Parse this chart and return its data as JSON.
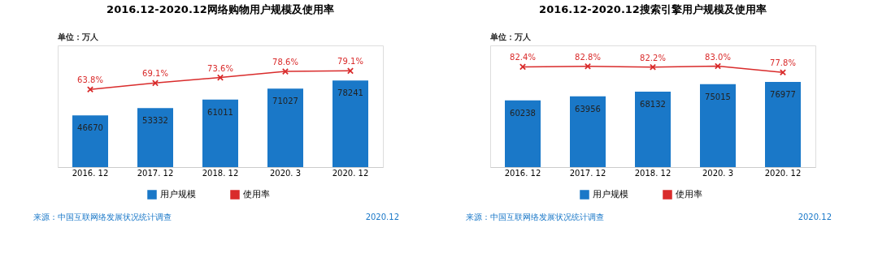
{
  "chart_data": [
    {
      "type": "bar",
      "title": "2016.12-2020.12网络购物用户规模及使用率",
      "categories": [
        "2016. 12",
        "2017. 12",
        "2018. 12",
        "2020. 3",
        "2020. 12"
      ],
      "series": [
        {
          "name": "用户规模",
          "color": "#1a78c8",
          "values": [
            46670,
            53332,
            61011,
            71027,
            78241
          ],
          "value_labels": [
            "46670",
            "53332",
            "61011",
            "71027",
            "78241"
          ]
        },
        {
          "name": "使用率",
          "type": "line",
          "axis": "y2",
          "color": "#d92b2b",
          "values": [
            63.8,
            69.1,
            73.6,
            78.6,
            79.1
          ],
          "value_labels": [
            "63.8%",
            "69.1%",
            "73.6%",
            "78.6%",
            "79.1%"
          ]
        }
      ],
      "annotations": [
        "单位：万人",
        "来源：中国互联网络发展状况统计调查",
        "2020.12"
      ],
      "legend": "bottom",
      "marker": "cross",
      "grid": false,
      "tick_labels": "x",
      "ylim": [
        0,
        110000
      ],
      "y2lim": [
        0,
        100
      ]
    },
    {
      "type": "bar",
      "title": "2016.12-2020.12搜索引擎用户规模及使用率",
      "categories": [
        "2016. 12",
        "2017. 12",
        "2018. 12",
        "2020. 3",
        "2020. 12"
      ],
      "series": [
        {
          "name": "用户规模",
          "color": "#1a78c8",
          "values": [
            60238,
            63956,
            68132,
            75015,
            76977
          ],
          "value_labels": [
            "60238",
            "63956",
            "68132",
            "75015",
            "76977"
          ]
        },
        {
          "name": "使用率",
          "type": "line",
          "axis": "y2",
          "color": "#d92b2b",
          "values": [
            82.4,
            82.8,
            82.2,
            83.0,
            77.8
          ],
          "value_labels": [
            "82.4%",
            "82.8%",
            "82.2%",
            "83.0%",
            "77.8%"
          ]
        }
      ],
      "annotations": [
        "单位：万人",
        "来源：中国互联网络发展状况统计调查",
        "2020.12"
      ],
      "legend": "bottom",
      "marker": "cross",
      "grid": false,
      "tick_labels": "x",
      "ylim": [
        0,
        110000
      ],
      "y2lim": [
        0,
        100
      ]
    }
  ]
}
